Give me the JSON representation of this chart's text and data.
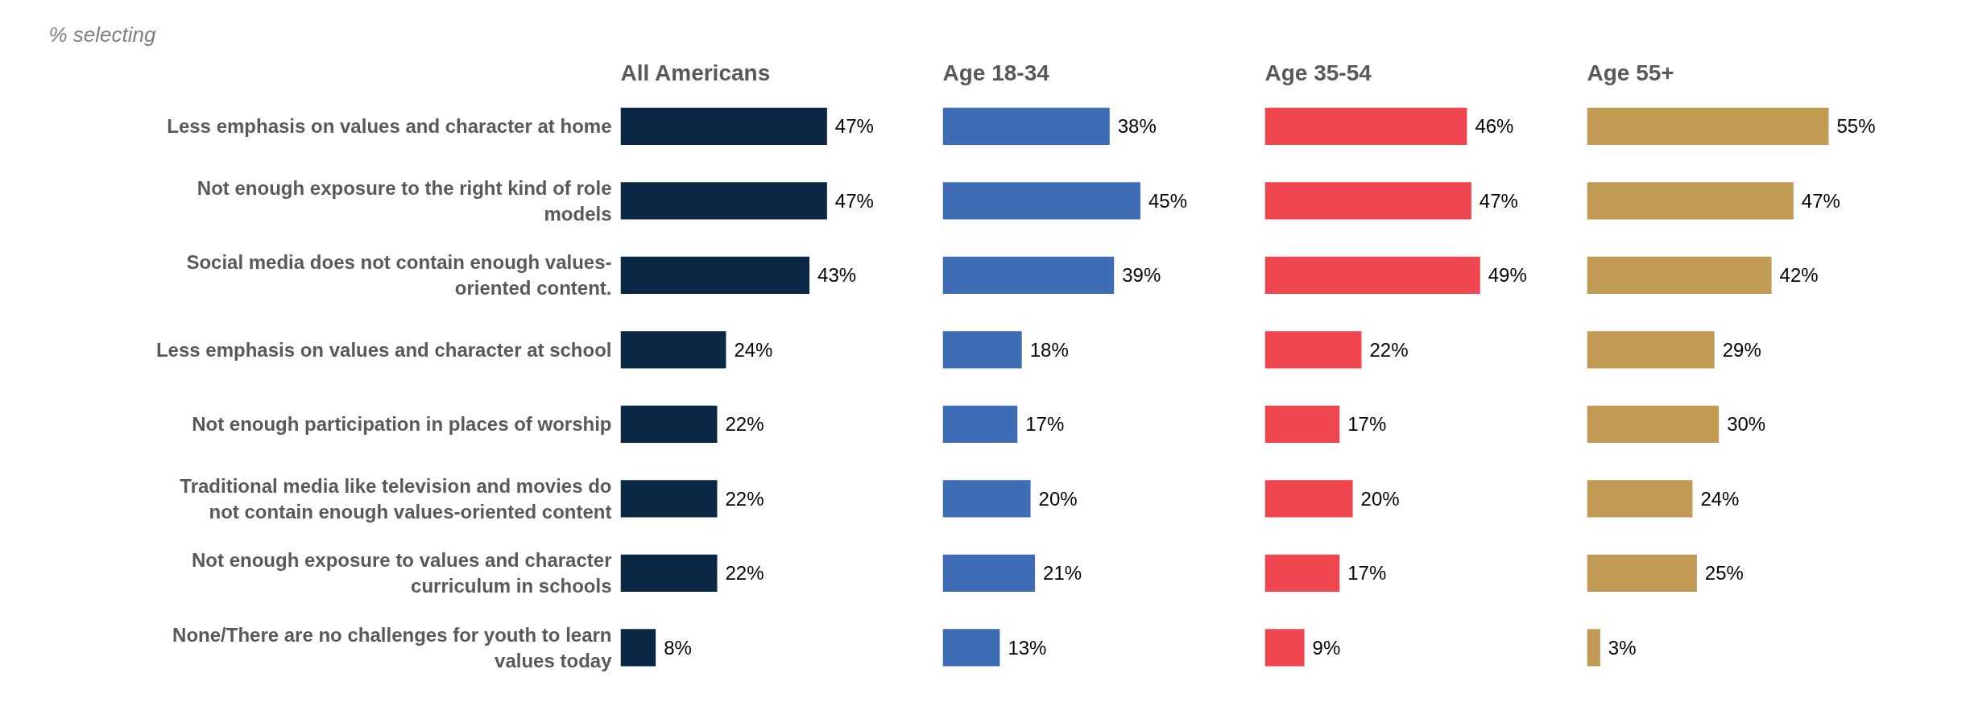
{
  "chart_data": [
    {
      "type": "bar",
      "orientation": "horizontal",
      "title": "All Americans",
      "annotations": [
        "% selecting"
      ],
      "tick_labels": "y",
      "grid": false,
      "categories": [
        "Less emphasis on values and character at home",
        "Not enough exposure to the right kind of role models",
        "Social media does not contain enough values-oriented content.",
        "Less emphasis on values and character at school",
        "Not enough participation in places of worship",
        "Traditional media like television and movies do not contain enough values-oriented content",
        "Not enough exposure to values and character curriculum in schools",
        "None/There are no challenges for youth to learn values today"
      ],
      "series": [
        {
          "color": "#0a2846",
          "values": [
            47,
            47,
            43,
            24,
            22,
            22,
            22,
            8
          ],
          "value_labels": [
            "47%",
            "47%",
            "43%",
            "24%",
            "22%",
            "22%",
            "22%",
            "8%"
          ]
        }
      ]
    },
    {
      "type": "bar",
      "orientation": "horizontal",
      "title": "Age 18-34",
      "tick_labels": false,
      "grid": false,
      "categories": [
        "Less emphasis on values and character at home",
        "Not enough exposure to the right kind of role models",
        "Social media does not contain enough values-oriented content.",
        "Less emphasis on values and character at school",
        "Not enough participation in places of worship",
        "Traditional media like television and movies do not contain enough values-oriented content",
        "Not enough exposure to values and character curriculum in schools",
        "None/There are no challenges for youth to learn values today"
      ],
      "series": [
        {
          "color": "#3f6db5",
          "values": [
            38,
            45,
            39,
            18,
            17,
            20,
            21,
            13
          ],
          "value_labels": [
            "38%",
            "45%",
            "39%",
            "18%",
            "17%",
            "20%",
            "21%",
            "13%"
          ]
        }
      ]
    },
    {
      "type": "bar",
      "orientation": "horizontal",
      "title": "Age 35-54",
      "tick_labels": false,
      "grid": false,
      "categories": [
        "Less emphasis on values and character at home",
        "Not enough exposure to the right kind of role models",
        "Social media does not contain enough values-oriented content.",
        "Less emphasis on values and character at school",
        "Not enough participation in places of worship",
        "Traditional media like television and movies do not contain enough values-oriented content",
        "Not enough exposure to values and character curriculum in schools",
        "None/There are no challenges for youth to learn values today"
      ],
      "series": [
        {
          "color": "#ef4650",
          "values": [
            46,
            47,
            49,
            22,
            17,
            20,
            17,
            9
          ],
          "value_labels": [
            "46%",
            "47%",
            "49%",
            "22%",
            "17%",
            "20%",
            "17%",
            "9%"
          ]
        }
      ]
    },
    {
      "type": "bar",
      "orientation": "horizontal",
      "title": "Age 55+",
      "tick_labels": false,
      "grid": false,
      "categories": [
        "Less emphasis on values and character at home",
        "Not enough exposure to the right kind of role models",
        "Social media does not contain enough values-oriented content.",
        "Less emphasis on values and character at school",
        "Not enough participation in places of worship",
        "Traditional media like television and movies do not contain enough values-oriented content",
        "Not enough exposure to values and character curriculum in schools",
        "None/There are no challenges for youth to learn values today"
      ],
      "series": [
        {
          "color": "#c19a53",
          "values": [
            55,
            47,
            42,
            29,
            30,
            24,
            25,
            3
          ],
          "value_labels": [
            "55%",
            "47%",
            "42%",
            "29%",
            "30%",
            "24%",
            "25%",
            "3%"
          ]
        }
      ]
    }
  ]
}
